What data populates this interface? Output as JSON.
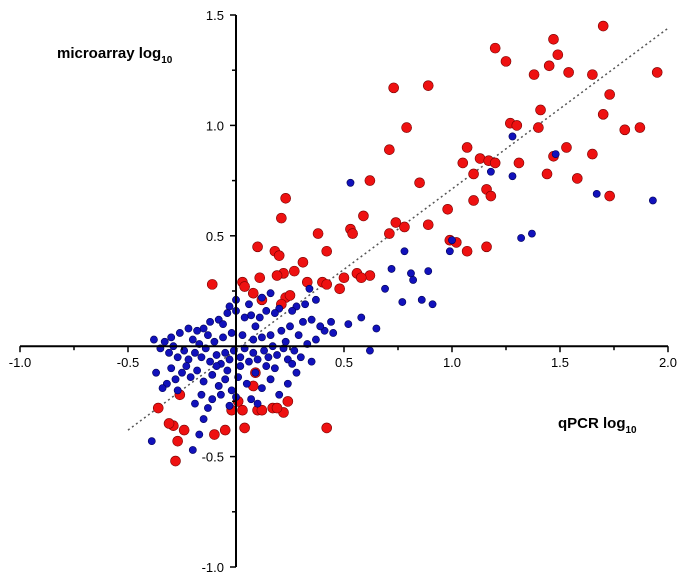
{
  "chart_data": {
    "type": "scatter",
    "title": "",
    "xlabel": "qPCR log",
    "xlabel_sub": "10",
    "ylabel": "microarray log",
    "ylabel_sub": "10",
    "xlim": [
      -1.0,
      2.0
    ],
    "ylim": [
      -1.0,
      1.5
    ],
    "xticks": [
      -1.0,
      -0.5,
      0.5,
      1.0,
      1.5,
      2.0
    ],
    "xtick_labels": [
      "-1.0",
      "-0.5",
      "0.5",
      "1.0",
      "1.5",
      "2.0"
    ],
    "yticks": [
      -1.0,
      -0.5,
      0.5,
      1.0,
      1.5
    ],
    "ytick_labels": [
      "-1.0",
      "-0.5",
      "0.5",
      "1.0",
      "1.5"
    ],
    "grid": false,
    "legend": "none",
    "colors": {
      "red_series": "#ee1111",
      "blue_series": "#1111bb",
      "trend_line": "#555555"
    },
    "trend_line": {
      "style": "dotted",
      "points": [
        [
          -0.5,
          -0.38
        ],
        [
          2.0,
          1.44
        ]
      ]
    },
    "series": [
      {
        "color": "red",
        "points": [
          [
            1.7,
            1.45
          ],
          [
            1.47,
            1.39
          ],
          [
            1.2,
            1.35
          ],
          [
            1.49,
            1.32
          ],
          [
            1.25,
            1.29
          ],
          [
            1.45,
            1.27
          ],
          [
            1.54,
            1.24
          ],
          [
            1.65,
            1.23
          ],
          [
            1.38,
            1.23
          ],
          [
            1.95,
            1.24
          ],
          [
            0.73,
            1.17
          ],
          [
            0.89,
            1.18
          ],
          [
            1.73,
            1.14
          ],
          [
            1.41,
            1.07
          ],
          [
            1.7,
            1.05
          ],
          [
            1.27,
            1.01
          ],
          [
            1.3,
            1.0
          ],
          [
            1.4,
            0.99
          ],
          [
            0.79,
            0.99
          ],
          [
            1.87,
            0.99
          ],
          [
            1.8,
            0.98
          ],
          [
            0.71,
            0.89
          ],
          [
            1.07,
            0.9
          ],
          [
            1.53,
            0.9
          ],
          [
            1.65,
            0.87
          ],
          [
            1.47,
            0.86
          ],
          [
            1.13,
            0.85
          ],
          [
            1.17,
            0.84
          ],
          [
            1.31,
            0.83
          ],
          [
            1.05,
            0.83
          ],
          [
            1.2,
            0.83
          ],
          [
            1.1,
            0.78
          ],
          [
            1.44,
            0.78
          ],
          [
            1.58,
            0.76
          ],
          [
            0.62,
            0.75
          ],
          [
            0.85,
            0.74
          ],
          [
            1.16,
            0.71
          ],
          [
            1.18,
            0.68
          ],
          [
            1.73,
            0.68
          ],
          [
            0.23,
            0.67
          ],
          [
            1.1,
            0.66
          ],
          [
            0.98,
            0.62
          ],
          [
            0.59,
            0.59
          ],
          [
            0.21,
            0.58
          ],
          [
            0.74,
            0.56
          ],
          [
            0.89,
            0.55
          ],
          [
            0.78,
            0.54
          ],
          [
            0.53,
            0.53
          ],
          [
            0.54,
            0.51
          ],
          [
            0.38,
            0.51
          ],
          [
            0.71,
            0.51
          ],
          [
            0.99,
            0.48
          ],
          [
            1.02,
            0.47
          ],
          [
            1.16,
            0.45
          ],
          [
            0.1,
            0.45
          ],
          [
            0.18,
            0.43
          ],
          [
            1.07,
            0.43
          ],
          [
            0.42,
            0.43
          ],
          [
            0.2,
            0.41
          ],
          [
            0.31,
            0.38
          ],
          [
            0.27,
            0.34
          ],
          [
            0.22,
            0.33
          ],
          [
            0.19,
            0.32
          ],
          [
            0.11,
            0.31
          ],
          [
            0.56,
            0.33
          ],
          [
            0.62,
            0.32
          ],
          [
            0.58,
            0.31
          ],
          [
            0.5,
            0.31
          ],
          [
            0.33,
            0.29
          ],
          [
            0.4,
            0.29
          ],
          [
            0.03,
            0.29
          ],
          [
            -0.11,
            0.28
          ],
          [
            0.04,
            0.27
          ],
          [
            0.48,
            0.26
          ],
          [
            0.08,
            0.24
          ],
          [
            0.12,
            0.21
          ],
          [
            0.23,
            0.22
          ],
          [
            0.21,
            0.19
          ],
          [
            0.25,
            0.23
          ],
          [
            0.42,
            0.28
          ],
          [
            -0.36,
            -0.28
          ],
          [
            -0.26,
            -0.22
          ],
          [
            -0.29,
            -0.36
          ],
          [
            -0.31,
            -0.35
          ],
          [
            -0.27,
            -0.43
          ],
          [
            -0.24,
            -0.38
          ],
          [
            -0.28,
            -0.52
          ],
          [
            -0.1,
            -0.4
          ],
          [
            -0.05,
            -0.38
          ],
          [
            0.04,
            -0.37
          ],
          [
            0.03,
            -0.29
          ],
          [
            0.1,
            -0.29
          ],
          [
            0.01,
            -0.25
          ],
          [
            0.12,
            -0.29
          ],
          [
            0.17,
            -0.28
          ],
          [
            0.24,
            -0.25
          ],
          [
            0.22,
            -0.3
          ],
          [
            0.19,
            -0.28
          ],
          [
            -0.02,
            -0.29
          ],
          [
            0.42,
            -0.37
          ],
          [
            0.08,
            -0.18
          ],
          [
            0.09,
            -0.12
          ]
        ]
      },
      {
        "color": "blue",
        "points": [
          [
            1.67,
            0.69
          ],
          [
            1.48,
            0.87
          ],
          [
            1.93,
            0.66
          ],
          [
            1.28,
            0.77
          ],
          [
            1.37,
            0.51
          ],
          [
            1.32,
            0.49
          ],
          [
            0.78,
            0.43
          ],
          [
            0.81,
            0.33
          ],
          [
            0.72,
            0.35
          ],
          [
            0.89,
            0.34
          ],
          [
            0.82,
            0.3
          ],
          [
            0.86,
            0.21
          ],
          [
            0.77,
            0.2
          ],
          [
            0.91,
            0.19
          ],
          [
            0.69,
            0.26
          ],
          [
            0.53,
            0.74
          ],
          [
            0.34,
            0.26
          ],
          [
            0.37,
            0.21
          ],
          [
            0.32,
            0.19
          ],
          [
            0.28,
            0.18
          ],
          [
            0.26,
            0.16
          ],
          [
            0.2,
            0.17
          ],
          [
            0.18,
            0.15
          ],
          [
            0.14,
            0.16
          ],
          [
            0.11,
            0.13
          ],
          [
            0.07,
            0.14
          ],
          [
            0.04,
            0.13
          ],
          [
            0.0,
            0.16
          ],
          [
            -0.04,
            0.15
          ],
          [
            -0.08,
            0.12
          ],
          [
            -0.12,
            0.11
          ],
          [
            -0.15,
            0.08
          ],
          [
            -0.18,
            0.07
          ],
          [
            -0.22,
            0.08
          ],
          [
            -0.26,
            0.06
          ],
          [
            -0.3,
            0.04
          ],
          [
            -0.33,
            0.02
          ],
          [
            -0.35,
            -0.01
          ],
          [
            -0.38,
            0.03
          ],
          [
            -0.31,
            -0.03
          ],
          [
            -0.29,
            0.0
          ],
          [
            -0.27,
            -0.05
          ],
          [
            -0.24,
            -0.02
          ],
          [
            -0.22,
            -0.06
          ],
          [
            -0.19,
            -0.03
          ],
          [
            -0.16,
            -0.05
          ],
          [
            -0.14,
            -0.01
          ],
          [
            -0.12,
            -0.07
          ],
          [
            -0.09,
            -0.04
          ],
          [
            -0.07,
            -0.08
          ],
          [
            -0.05,
            -0.03
          ],
          [
            -0.03,
            -0.06
          ],
          [
            -0.01,
            -0.02
          ],
          [
            0.02,
            -0.05
          ],
          [
            0.04,
            -0.01
          ],
          [
            0.06,
            -0.07
          ],
          [
            0.08,
            -0.03
          ],
          [
            0.1,
            -0.06
          ],
          [
            0.13,
            -0.02
          ],
          [
            0.15,
            -0.05
          ],
          [
            0.17,
            0.0
          ],
          [
            0.19,
            -0.04
          ],
          [
            0.22,
            -0.01
          ],
          [
            0.24,
            -0.06
          ],
          [
            0.27,
            -0.02
          ],
          [
            0.3,
            -0.05
          ],
          [
            0.33,
            0.01
          ],
          [
            0.37,
            0.03
          ],
          [
            0.41,
            0.07
          ],
          [
            0.44,
            0.11
          ],
          [
            0.52,
            0.1
          ],
          [
            0.58,
            0.13
          ],
          [
            0.62,
            -0.02
          ],
          [
            0.65,
            0.08
          ],
          [
            0.45,
            0.06
          ],
          [
            0.39,
            0.09
          ],
          [
            0.35,
            0.12
          ],
          [
            0.31,
            0.11
          ],
          [
            0.25,
            0.09
          ],
          [
            0.21,
            0.07
          ],
          [
            0.16,
            0.05
          ],
          [
            0.12,
            0.04
          ],
          [
            0.08,
            0.03
          ],
          [
            0.03,
            0.05
          ],
          [
            -0.02,
            0.06
          ],
          [
            -0.06,
            0.04
          ],
          [
            -0.1,
            0.02
          ],
          [
            -0.13,
            0.05
          ],
          [
            -0.17,
            0.01
          ],
          [
            -0.2,
            0.03
          ],
          [
            -0.23,
            -0.09
          ],
          [
            -0.25,
            -0.12
          ],
          [
            -0.28,
            -0.15
          ],
          [
            -0.32,
            -0.17
          ],
          [
            -0.34,
            -0.19
          ],
          [
            -0.37,
            -0.12
          ],
          [
            -0.3,
            -0.1
          ],
          [
            -0.27,
            -0.2
          ],
          [
            -0.21,
            -0.14
          ],
          [
            -0.18,
            -0.11
          ],
          [
            -0.15,
            -0.16
          ],
          [
            -0.11,
            -0.13
          ],
          [
            -0.08,
            -0.18
          ],
          [
            -0.05,
            -0.15
          ],
          [
            -0.02,
            -0.2
          ],
          [
            0.01,
            -0.14
          ],
          [
            0.05,
            -0.17
          ],
          [
            0.09,
            -0.12
          ],
          [
            0.12,
            -0.19
          ],
          [
            0.16,
            -0.15
          ],
          [
            0.2,
            -0.22
          ],
          [
            0.24,
            -0.17
          ],
          [
            0.28,
            -0.12
          ],
          [
            0.02,
            -0.09
          ],
          [
            -0.04,
            -0.11
          ],
          [
            -0.09,
            -0.09
          ],
          [
            0.14,
            -0.09
          ],
          [
            0.18,
            -0.1
          ],
          [
            -0.39,
            -0.43
          ],
          [
            -0.2,
            -0.47
          ],
          [
            -0.17,
            -0.4
          ],
          [
            -0.15,
            -0.33
          ],
          [
            -0.13,
            -0.28
          ],
          [
            -0.11,
            -0.24
          ],
          [
            -0.16,
            -0.22
          ],
          [
            -0.19,
            -0.26
          ],
          [
            -0.07,
            -0.22
          ],
          [
            -0.03,
            -0.27
          ],
          [
            0.0,
            -0.23
          ],
          [
            0.07,
            -0.24
          ],
          [
            0.1,
            -0.26
          ],
          [
            0.26,
            -0.08
          ],
          [
            0.35,
            -0.07
          ],
          [
            0.29,
            0.05
          ],
          [
            0.23,
            0.02
          ],
          [
            0.06,
            0.19
          ],
          [
            0.0,
            0.21
          ],
          [
            -0.03,
            0.18
          ],
          [
            0.12,
            0.22
          ],
          [
            0.16,
            0.24
          ],
          [
            0.09,
            0.09
          ],
          [
            -0.06,
            0.1
          ],
          [
            1.0,
            0.48
          ],
          [
            1.18,
            0.79
          ],
          [
            0.99,
            0.43
          ],
          [
            1.28,
            0.95
          ]
        ]
      }
    ]
  }
}
